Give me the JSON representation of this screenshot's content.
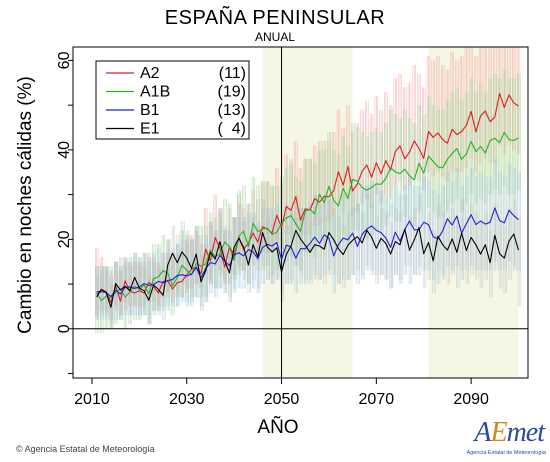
{
  "chart_data": {
    "type": "line",
    "title": "ESPAÑA PENINSULAR",
    "subtitle": "ANUAL",
    "xlabel": "AÑO",
    "ylabel": "Cambio en noches cálidas (%)",
    "xlim": [
      2006,
      2102
    ],
    "ylim": [
      -11,
      63
    ],
    "xticks": [
      2010,
      2030,
      2050,
      2070,
      2090
    ],
    "yticks": [
      0,
      20,
      40,
      60
    ],
    "reference_year": 2050,
    "shaded_periods": [
      [
        2046,
        2065
      ],
      [
        2081,
        2100
      ]
    ],
    "legend": {
      "placement": "top-left"
    },
    "series": [
      {
        "name": "A2",
        "count": "(11)",
        "color": "#e31a1c",
        "band_color": "#f4a3a3",
        "x_start": 2011,
        "values": [
          7.6,
          8.8,
          8.3,
          5.9,
          9.6,
          6.2,
          10.7,
          8.4,
          8.0,
          8.5,
          8.0,
          10.4,
          9.5,
          8.0,
          10.6,
          10.7,
          8.9,
          10.3,
          10.6,
          12.1,
          13.3,
          13.8,
          12.3,
          17.8,
          15.2,
          20.4,
          18.0,
          13.8,
          18.3,
          16.6,
          20.3,
          17.8,
          19.1,
          21.4,
          19.4,
          22.8,
          22.3,
          21.4,
          25.4,
          22.7,
          27.3,
          26.5,
          29.5,
          24.3,
          26.8,
          26.6,
          29.1,
          28.3,
          29.6,
          29.5,
          30.9,
          35.1,
          32.1,
          36.3,
          30.8,
          32.4,
          35.2,
          36.6,
          33.9,
          37.1,
          34.7,
          37.6,
          35.5,
          39.6,
          40.9,
          38.0,
          39.5,
          42.0,
          40.3,
          38.1,
          44.1,
          42.8,
          43.8,
          42.3,
          41.5,
          44.6,
          43.4,
          44.1,
          45.5,
          48.6,
          44.0,
          47.6,
          48.7,
          46.3,
          47.3,
          52.6,
          49.5,
          52.3,
          50.5,
          49.8
        ],
        "band_low": [
          3,
          4,
          4,
          2,
          5,
          3,
          6,
          5,
          5,
          5,
          5,
          6,
          6,
          5,
          7,
          7,
          6,
          7,
          7,
          8,
          9,
          10,
          9,
          12,
          11,
          14,
          13,
          10,
          13,
          12,
          14,
          13,
          14,
          16,
          15,
          17,
          17,
          17,
          20,
          18,
          21,
          21,
          23,
          19,
          21,
          21,
          23,
          23,
          24,
          24,
          25,
          28,
          26,
          29,
          25,
          26,
          28,
          29,
          27,
          30,
          28,
          30,
          29,
          32,
          33,
          31,
          32,
          34,
          33,
          31,
          35,
          34,
          35,
          34,
          33,
          35,
          35,
          35,
          36,
          38,
          35,
          37,
          38,
          37,
          37,
          41,
          39,
          41,
          40,
          39
        ],
        "band_high": [
          18,
          16,
          14,
          12,
          15,
          13,
          16,
          15,
          15,
          15,
          15,
          17,
          16,
          15,
          17,
          17,
          16,
          17,
          18,
          20,
          21,
          22,
          21,
          27,
          24,
          30,
          27,
          22,
          27,
          25,
          30,
          27,
          28,
          31,
          29,
          33,
          33,
          32,
          36,
          33,
          39,
          38,
          42,
          36,
          38,
          38,
          41,
          40,
          42,
          42,
          44,
          49,
          45,
          50,
          44,
          46,
          49,
          51,
          48,
          52,
          49,
          53,
          50,
          56,
          57,
          54,
          55,
          59,
          57,
          54,
          61,
          60,
          61,
          59,
          58,
          62,
          60,
          61,
          63,
          67,
          61,
          66,
          67,
          64,
          65,
          72,
          68,
          72,
          70,
          69
        ]
      },
      {
        "name": "A1B",
        "count": "(19)",
        "color": "#22b422",
        "band_color": "#9ad69a",
        "x_start": 2011,
        "values": [
          8.1,
          6.3,
          7.3,
          7.0,
          8.1,
          8.9,
          7.1,
          8.2,
          9.5,
          8.8,
          9.8,
          7.8,
          11.2,
          11.6,
          13.0,
          12.4,
          9.6,
          11.5,
          14.2,
          13.1,
          12.1,
          14.6,
          14.0,
          14.5,
          17.6,
          16.1,
          16.8,
          19.4,
          18.3,
          15.3,
          20.7,
          21.8,
          18.4,
          23.6,
          21.7,
          22.3,
          22.5,
          21.1,
          21.6,
          23.5,
          24.8,
          25.3,
          23.5,
          21.8,
          26.3,
          26.7,
          25.7,
          30.1,
          28.2,
          31.9,
          28.7,
          27.5,
          31.4,
          29.1,
          33.4,
          33.0,
          31.6,
          31.0,
          31.6,
          32.4,
          32.3,
          33.6,
          36.0,
          35.1,
          34.7,
          35.7,
          34.2,
          33.3,
          37.0,
          34.8,
          38.6,
          37.4,
          36.2,
          36.0,
          37.9,
          39.2,
          40.3,
          37.9,
          39.1,
          41.9,
          39.6,
          40.8,
          39.3,
          42.1,
          42.6,
          41.6,
          43.9,
          42.3,
          42.1,
          42.7
        ],
        "band_low": [
          -1,
          -1,
          0,
          0,
          1,
          2,
          0,
          1,
          2,
          2,
          3,
          1,
          4,
          4,
          5,
          5,
          3,
          5,
          7,
          6,
          5,
          7,
          7,
          7,
          10,
          9,
          9,
          11,
          10,
          8,
          12,
          13,
          10,
          14,
          13,
          13,
          14,
          12,
          13,
          14,
          15,
          16,
          14,
          13,
          17,
          17,
          16,
          20,
          18,
          21,
          19,
          18,
          21,
          19,
          22,
          22,
          21,
          20,
          21,
          22,
          22,
          23,
          25,
          24,
          24,
          25,
          23,
          23,
          26,
          24,
          27,
          26,
          25,
          25,
          26,
          28,
          29,
          26,
          28,
          30,
          28,
          29,
          28,
          30,
          31,
          30,
          32,
          30,
          30,
          31
        ],
        "band_high": [
          14,
          13,
          14,
          14,
          15,
          16,
          14,
          15,
          17,
          16,
          17,
          15,
          19,
          19,
          21,
          20,
          17,
          19,
          22,
          21,
          20,
          23,
          23,
          23,
          26,
          25,
          26,
          29,
          28,
          25,
          31,
          32,
          28,
          34,
          32,
          33,
          33,
          32,
          32,
          34,
          36,
          37,
          34,
          33,
          38,
          38,
          37,
          42,
          40,
          44,
          40,
          39,
          43,
          41,
          46,
          45,
          44,
          43,
          44,
          45,
          44,
          46,
          49,
          48,
          47,
          49,
          47,
          46,
          50,
          48,
          52,
          50,
          49,
          49,
          51,
          53,
          54,
          51,
          53,
          56,
          53,
          55,
          53,
          56,
          57,
          56,
          58,
          56,
          56,
          57
        ]
      },
      {
        "name": "B1",
        "count": "(13)",
        "color": "#1f1fd6",
        "band_color": "#9ec8e6",
        "x_start": 2011,
        "values": [
          8.3,
          8.3,
          8.1,
          7.2,
          8.6,
          7.8,
          9.3,
          9.4,
          9.0,
          9.4,
          10.1,
          9.7,
          9.9,
          10.6,
          10.3,
          10.8,
          11.0,
          11.9,
          12.1,
          11.8,
          12.2,
          13.7,
          11.4,
          13.5,
          14.8,
          14.5,
          16.4,
          15.2,
          14.1,
          16.5,
          17.0,
          16.3,
          17.7,
          17.2,
          15.7,
          18.2,
          18.9,
          18.5,
          19.3,
          15.5,
          18.7,
          18.3,
          15.8,
          17.9,
          17.9,
          19.1,
          20.5,
          19.1,
          21.0,
          20.3,
          16.3,
          18.8,
          20.3,
          19.9,
          21.4,
          18.4,
          21.1,
          22.3,
          23.0,
          22.0,
          21.5,
          20.3,
          18.2,
          21.6,
          19.6,
          22.2,
          24.1,
          22.1,
          22.2,
          23.8,
          23.3,
          20.6,
          20.1,
          21.9,
          24.6,
          23.2,
          25.2,
          21.4,
          23.5,
          25.5,
          23.3,
          24.1,
          23.4,
          23.8,
          27.0,
          24.2,
          23.7,
          26.5,
          25.3,
          24.4
        ],
        "band_low": [
          2,
          2,
          2,
          1,
          2,
          2,
          3,
          3,
          3,
          3,
          4,
          3,
          3,
          4,
          4,
          4,
          5,
          5,
          6,
          5,
          6,
          7,
          5,
          6,
          8,
          7,
          9,
          8,
          7,
          9,
          9,
          9,
          10,
          9,
          8,
          10,
          11,
          10,
          11,
          8,
          10,
          10,
          8,
          10,
          10,
          11,
          12,
          11,
          12,
          12,
          8,
          10,
          11,
          11,
          12,
          10,
          12,
          13,
          13,
          12,
          12,
          11,
          9,
          12,
          10,
          12,
          14,
          12,
          12,
          13,
          13,
          11,
          10,
          12,
          14,
          13,
          14,
          11,
          13,
          14,
          13,
          13,
          13,
          13,
          15,
          13,
          13,
          15,
          14,
          13
        ],
        "band_high": [
          14,
          14,
          14,
          13,
          15,
          14,
          16,
          16,
          15,
          16,
          17,
          16,
          17,
          18,
          17,
          18,
          18,
          19,
          20,
          19,
          20,
          21,
          19,
          21,
          23,
          22,
          24,
          23,
          22,
          25,
          25,
          24,
          26,
          25,
          24,
          27,
          27,
          27,
          28,
          24,
          28,
          27,
          25,
          27,
          27,
          28,
          30,
          28,
          30,
          29,
          25,
          28,
          30,
          29,
          31,
          28,
          31,
          32,
          33,
          32,
          31,
          30,
          28,
          32,
          30,
          32,
          34,
          32,
          32,
          34,
          33,
          31,
          30,
          32,
          35,
          33,
          36,
          32,
          34,
          36,
          34,
          35,
          34,
          34,
          38,
          35,
          34,
          37,
          36,
          35
        ]
      },
      {
        "name": "E1",
        "count": "(  4)",
        "color": "#000000",
        "band_color": "#c4c4c4",
        "x_start": 2011,
        "values": [
          7.1,
          8.8,
          8.1,
          4.8,
          10.1,
          8.7,
          9.5,
          8.5,
          11.5,
          9.1,
          8.5,
          6.4,
          9.8,
          8.8,
          7.5,
          14.3,
          16.9,
          14.8,
          17.2,
          15.8,
          13.5,
          16.7,
          10.5,
          13.0,
          17.1,
          15.6,
          19.5,
          15.3,
          12.5,
          18.2,
          20.3,
          18.2,
          14.3,
          18.8,
          16.1,
          21.5,
          18.3,
          17.2,
          18.1,
          12.7,
          16.6,
          18.5,
          22.0,
          20.1,
          18.7,
          17.1,
          18.8,
          18.5,
          17.8,
          21.5,
          19.9,
          17.9,
          16.6,
          18.7,
          19.8,
          20.6,
          19.2,
          22.0,
          20.5,
          18.0,
          20.2,
          19.1,
          16.7,
          19.5,
          18.8,
          22.3,
          17.6,
          19.9,
          22.6,
          16.8,
          19.3,
          15.2,
          20.7,
          18.8,
          17.6,
          20.1,
          17.1,
          21.4,
          17.5,
          20.4,
          18.8,
          16.7,
          18.8,
          14.8,
          20.9,
          16.8,
          15.8,
          19.6,
          21.2,
          17.6
        ],
        "band_low": [
          2,
          3,
          3,
          0,
          4,
          3,
          4,
          3,
          5,
          3,
          3,
          1,
          4,
          3,
          2,
          8,
          10,
          8,
          10,
          9,
          7,
          10,
          4,
          6,
          10,
          9,
          12,
          8,
          6,
          11,
          13,
          11,
          8,
          11,
          9,
          14,
          11,
          10,
          11,
          6,
          10,
          11,
          14,
          12,
          11,
          10,
          11,
          11,
          10,
          13,
          12,
          10,
          9,
          11,
          12,
          13,
          11,
          14,
          12,
          10,
          12,
          11,
          9,
          12,
          11,
          14,
          10,
          12,
          14,
          9,
          11,
          8,
          13,
          11,
          10,
          12,
          9,
          13,
          10,
          12,
          11,
          9,
          11,
          7,
          13,
          9,
          8,
          11,
          13,
          5
        ],
        "band_high": [
          12,
          14,
          13,
          10,
          15,
          14,
          15,
          14,
          17,
          14,
          14,
          12,
          15,
          14,
          13,
          20,
          23,
          21,
          24,
          22,
          20,
          23,
          17,
          19,
          24,
          22,
          27,
          22,
          19,
          25,
          28,
          25,
          21,
          26,
          23,
          29,
          25,
          24,
          25,
          19,
          23,
          26,
          30,
          27,
          26,
          24,
          26,
          25,
          25,
          29,
          27,
          25,
          23,
          26,
          27,
          28,
          26,
          30,
          28,
          25,
          27,
          26,
          24,
          27,
          26,
          30,
          25,
          27,
          30,
          24,
          26,
          22,
          28,
          26,
          25,
          27,
          24,
          29,
          25,
          28,
          26,
          24,
          26,
          22,
          28,
          24,
          23,
          27,
          29,
          25
        ]
      }
    ]
  },
  "footer": {
    "credit": "Agencia Estatal de Meteorología",
    "logo_a": "A",
    "logo_e": "E",
    "logo_rest": "met",
    "logo_sub": "Agencia Estatal de Meteorología"
  }
}
